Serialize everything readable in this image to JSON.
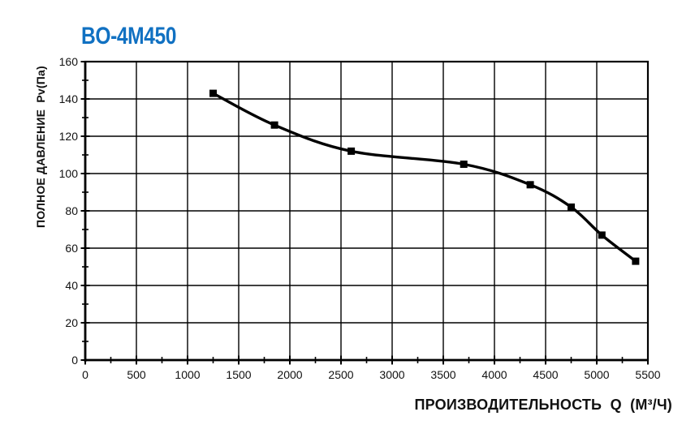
{
  "page": {
    "background": "#ffffff"
  },
  "chart_data": {
    "type": "line",
    "title": "BO-4M450",
    "title_color": "#1171C2",
    "xlabel": "ПРОИЗВОДИТЕЛЬНОСТЬ  Q  (М³/Ч)",
    "ylabel": "ПОЛНОЕ ДАВЛЕНИЕ  Pv(Па)",
    "xlim": [
      0,
      5500
    ],
    "ylim": [
      0,
      160
    ],
    "x_ticks": [
      0,
      500,
      1000,
      1500,
      2000,
      2500,
      3000,
      3500,
      4000,
      4500,
      5000,
      5500
    ],
    "y_ticks": [
      0,
      20,
      40,
      60,
      80,
      100,
      120,
      140,
      160
    ],
    "x_minor_step": 250,
    "y_minor_step": 10,
    "grid": true,
    "legend": "none",
    "line_color": "#000000",
    "marker": "square",
    "series": [
      {
        "name": "BO-4M450",
        "points": [
          [
            1250,
            143
          ],
          [
            1850,
            126
          ],
          [
            2600,
            112
          ],
          [
            3700,
            105
          ],
          [
            4350,
            94
          ],
          [
            4750,
            82
          ],
          [
            5050,
            67
          ],
          [
            5380,
            53
          ]
        ]
      }
    ]
  }
}
